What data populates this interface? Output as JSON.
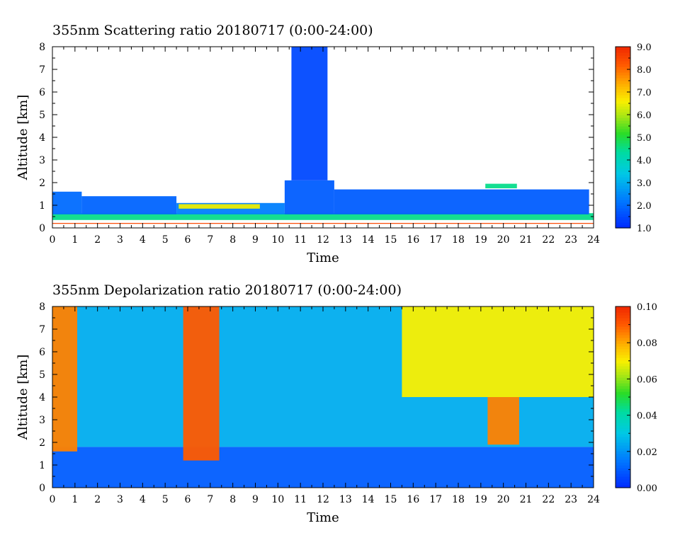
{
  "chart_data": [
    {
      "type": "heatmap",
      "title": "355nm Scattering ratio  20180717 (0:00-24:00)",
      "xlabel": "Time",
      "ylabel": "Altitude [km]",
      "xlim": [
        0,
        24
      ],
      "ylim": [
        0,
        8
      ],
      "x_ticks": [
        "0",
        "1",
        "2",
        "3",
        "4",
        "5",
        "6",
        "7",
        "8",
        "9",
        "10",
        "11",
        "12",
        "13",
        "14",
        "15",
        "16",
        "17",
        "18",
        "19",
        "20",
        "21",
        "22",
        "23",
        "24"
      ],
      "y_ticks": [
        "0",
        "1",
        "2",
        "3",
        "4",
        "5",
        "6",
        "7",
        "8"
      ],
      "colorbar": {
        "range": [
          1.0,
          9.0
        ],
        "ticks": [
          "1.0",
          "2.0",
          "3.0",
          "4.0",
          "5.0",
          "6.0",
          "7.0",
          "8.0",
          "9.0"
        ]
      },
      "regions": [
        {
          "x": [
            0,
            24
          ],
          "y": [
            0.18,
            0.22
          ],
          "value": 8.5
        },
        {
          "x": [
            0,
            24
          ],
          "y": [
            0.35,
            0.65
          ],
          "value": 4.5
        },
        {
          "x": [
            0,
            1.3
          ],
          "y": [
            0.6,
            1.6
          ],
          "value": 2.0
        },
        {
          "x": [
            1.3,
            5.5
          ],
          "y": [
            0.6,
            1.4
          ],
          "value": 1.9
        },
        {
          "x": [
            5.5,
            10.3
          ],
          "y": [
            0.6,
            1.1
          ],
          "value": 2.3
        },
        {
          "x": [
            5.6,
            9.2
          ],
          "y": [
            0.85,
            1.05
          ],
          "value": 6.5
        },
        {
          "x": [
            10.3,
            12.5
          ],
          "y": [
            0.6,
            2.1
          ],
          "value": 1.8
        },
        {
          "x": [
            12.5,
            23.8
          ],
          "y": [
            0.6,
            1.7
          ],
          "value": 1.8
        },
        {
          "x": [
            19.2,
            20.6
          ],
          "y": [
            1.75,
            1.95
          ],
          "value": 4.5
        },
        {
          "x": [
            10.6,
            12.2
          ],
          "y": [
            2.1,
            8.0
          ],
          "value": 1.5
        }
      ]
    },
    {
      "type": "heatmap",
      "title": "355nm Depolarization ratio  20180717 (0:00-24:00)",
      "xlabel": "Time",
      "ylabel": "Altitude [km]",
      "xlim": [
        0,
        24
      ],
      "ylim": [
        0,
        8
      ],
      "x_ticks": [
        "0",
        "1",
        "2",
        "3",
        "4",
        "5",
        "6",
        "7",
        "8",
        "9",
        "10",
        "11",
        "12",
        "13",
        "14",
        "15",
        "16",
        "17",
        "18",
        "19",
        "20",
        "21",
        "22",
        "23",
        "24"
      ],
      "y_ticks": [
        "0",
        "1",
        "2",
        "3",
        "4",
        "5",
        "6",
        "7",
        "8"
      ],
      "colorbar": {
        "range": [
          0.0,
          0.1
        ],
        "ticks": [
          "0.00",
          "0.02",
          "0.04",
          "0.06",
          "0.08",
          "0.10"
        ]
      },
      "regions": [
        {
          "x": [
            0,
            24
          ],
          "y": [
            0,
            1.8
          ],
          "value": 0.01
        },
        {
          "x": [
            0,
            24
          ],
          "y": [
            1.8,
            8
          ],
          "value": 0.025
        },
        {
          "x": [
            0,
            1.1
          ],
          "y": [
            1.6,
            8
          ],
          "value": 0.085
        },
        {
          "x": [
            5.8,
            7.4
          ],
          "y": [
            1.2,
            8
          ],
          "value": 0.09
        },
        {
          "x": [
            15.5,
            24
          ],
          "y": [
            4.0,
            8
          ],
          "value": 0.07
        },
        {
          "x": [
            19.3,
            20.7
          ],
          "y": [
            1.9,
            4.0
          ],
          "value": 0.085
        }
      ]
    }
  ]
}
